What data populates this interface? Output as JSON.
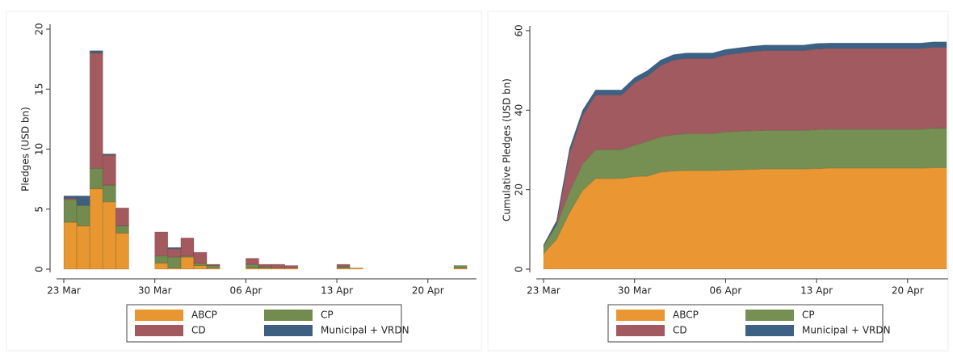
{
  "chart_data": [
    {
      "type": "bar",
      "stacked": true,
      "y_label": "Pledges (USD bn)",
      "categories": [
        "23 Mar",
        null,
        null,
        null,
        null,
        null,
        null,
        "30 Mar",
        null,
        null,
        null,
        null,
        null,
        null,
        "06 Apr",
        null,
        null,
        null,
        null,
        null,
        null,
        "13 Apr",
        null,
        null,
        null,
        null,
        null,
        null,
        "20 Apr",
        null,
        null,
        null
      ],
      "ylim": [
        0,
        20
      ],
      "yticks": [
        0,
        5,
        10,
        15,
        20
      ],
      "series": [
        {
          "name": "ABCP",
          "color": "#e8962f",
          "values": [
            3.9,
            3.6,
            6.7,
            5.6,
            3.0,
            0,
            0,
            0.5,
            0.1,
            1.0,
            0.3,
            0.1,
            0,
            0,
            0.1,
            0.1,
            0.1,
            0.1,
            0,
            0,
            0,
            0.1,
            0.1,
            0,
            0,
            0,
            0,
            0,
            0,
            0,
            0.1,
            0
          ]
        },
        {
          "name": "CP",
          "color": "#728b4e",
          "values": [
            1.9,
            1.7,
            1.7,
            1.4,
            0.6,
            0,
            0,
            0.6,
            0.9,
            0.1,
            0.2,
            0.2,
            0,
            0,
            0.3,
            0.1,
            0,
            0,
            0,
            0,
            0,
            0.1,
            0,
            0,
            0,
            0,
            0,
            0,
            0,
            0,
            0.2,
            0
          ]
        },
        {
          "name": "CD",
          "color": "#a25a5f",
          "values": [
            0.1,
            0,
            9.6,
            2.5,
            1.5,
            0,
            0,
            2.0,
            0.7,
            1.5,
            0.9,
            0.1,
            0,
            0,
            0.5,
            0.2,
            0.3,
            0.2,
            0,
            0,
            0,
            0.2,
            0,
            0,
            0,
            0,
            0,
            0,
            0,
            0,
            0,
            0
          ]
        },
        {
          "name": "Municipal + VRDN",
          "color": "#3f5f80",
          "values": [
            0.2,
            0.8,
            0.2,
            0.1,
            0,
            0,
            0,
            0,
            0.1,
            0,
            0,
            0,
            0,
            0,
            0,
            0,
            0,
            0,
            0,
            0,
            0,
            0,
            0,
            0,
            0,
            0,
            0,
            0,
            0,
            0,
            0,
            0
          ]
        }
      ]
    },
    {
      "type": "area",
      "stacked": true,
      "y_label": "Cumulative Pledges (USD bn)",
      "categories": [
        "23 Mar",
        null,
        null,
        null,
        null,
        null,
        null,
        "30 Mar",
        null,
        null,
        null,
        null,
        null,
        null,
        "06 Apr",
        null,
        null,
        null,
        null,
        null,
        null,
        "13 Apr",
        null,
        null,
        null,
        null,
        null,
        null,
        "20 Apr",
        null,
        null,
        null
      ],
      "ylim": [
        0,
        60
      ],
      "yticks": [
        0,
        20,
        40,
        60
      ],
      "series": [
        {
          "name": "ABCP",
          "color": "#ea9633",
          "values": [
            3.9,
            7.5,
            14.2,
            19.8,
            22.8,
            22.8,
            22.8,
            23.3,
            23.4,
            24.4,
            24.7,
            24.8,
            24.8,
            24.8,
            24.9,
            25.0,
            25.1,
            25.2,
            25.2,
            25.2,
            25.2,
            25.3,
            25.4,
            25.4,
            25.4,
            25.4,
            25.4,
            25.4,
            25.4,
            25.4,
            25.5,
            25.5
          ]
        },
        {
          "name": "CP",
          "color": "#768f52",
          "values": [
            1.9,
            3.6,
            5.3,
            6.7,
            7.3,
            7.3,
            7.3,
            7.9,
            8.8,
            8.9,
            9.1,
            9.3,
            9.3,
            9.3,
            9.6,
            9.7,
            9.7,
            9.7,
            9.7,
            9.7,
            9.7,
            9.8,
            9.8,
            9.8,
            9.8,
            9.8,
            9.8,
            9.8,
            9.8,
            9.8,
            10.0,
            10.0
          ]
        },
        {
          "name": "CD",
          "color": "#a15a60",
          "values": [
            0.1,
            0.1,
            9.7,
            12.2,
            13.7,
            13.7,
            13.7,
            15.7,
            16.4,
            17.9,
            18.8,
            18.9,
            18.9,
            18.9,
            19.4,
            19.6,
            19.9,
            20.1,
            20.1,
            20.1,
            20.1,
            20.3,
            20.3,
            20.3,
            20.3,
            20.3,
            20.3,
            20.3,
            20.3,
            20.3,
            20.3,
            20.3
          ]
        },
        {
          "name": "Municipal + VRDN",
          "color": "#3d6184",
          "values": [
            0.2,
            1.0,
            1.2,
            1.3,
            1.3,
            1.3,
            1.3,
            1.3,
            1.4,
            1.4,
            1.4,
            1.4,
            1.4,
            1.4,
            1.4,
            1.4,
            1.4,
            1.4,
            1.4,
            1.4,
            1.4,
            1.4,
            1.4,
            1.4,
            1.4,
            1.4,
            1.4,
            1.4,
            1.4,
            1.4,
            1.4,
            1.4
          ]
        }
      ]
    }
  ]
}
